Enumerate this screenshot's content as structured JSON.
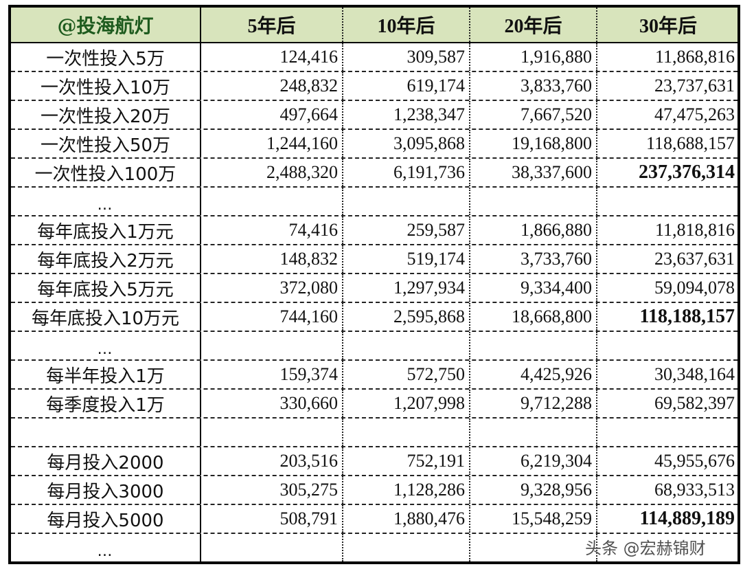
{
  "table": {
    "headers": [
      "@投海航灯",
      "5年后",
      "10年后",
      "20年后",
      "30年后"
    ],
    "rows": [
      {
        "label": "一次性投入5万",
        "v5": "124,416",
        "v10": "309,587",
        "v20": "1,916,880",
        "v30": "11,868,816",
        "bold30": false
      },
      {
        "label": "一次性投入10万",
        "v5": "248,832",
        "v10": "619,174",
        "v20": "3,833,760",
        "v30": "23,737,631",
        "bold30": false
      },
      {
        "label": "一次性投入20万",
        "v5": "497,664",
        "v10": "1,238,347",
        "v20": "7,667,520",
        "v30": "47,475,263",
        "bold30": false
      },
      {
        "label": "一次性投入50万",
        "v5": "1,244,160",
        "v10": "3,095,868",
        "v20": "19,168,800",
        "v30": "118,688,157",
        "bold30": false
      },
      {
        "label": "一次性投入100万",
        "v5": "2,488,320",
        "v10": "6,191,736",
        "v20": "38,337,600",
        "v30": "237,376,314",
        "bold30": true
      },
      {
        "label": "…",
        "v5": "",
        "v10": "",
        "v20": "",
        "v30": "",
        "bold30": false
      },
      {
        "label": "每年底投入1万元",
        "v5": "74,416",
        "v10": "259,587",
        "v20": "1,866,880",
        "v30": "11,818,816",
        "bold30": false
      },
      {
        "label": "每年底投入2万元",
        "v5": "148,832",
        "v10": "519,174",
        "v20": "3,733,760",
        "v30": "23,637,631",
        "bold30": false
      },
      {
        "label": "每年底投入5万元",
        "v5": "372,080",
        "v10": "1,297,934",
        "v20": "9,334,400",
        "v30": "59,094,078",
        "bold30": false
      },
      {
        "label": "每年底投入10万元",
        "v5": "744,160",
        "v10": "2,595,868",
        "v20": "18,668,800",
        "v30": "118,188,157",
        "bold30": true
      },
      {
        "label": "…",
        "v5": "",
        "v10": "",
        "v20": "",
        "v30": "",
        "bold30": false
      },
      {
        "label": "每半年投入1万",
        "v5": "159,374",
        "v10": "572,750",
        "v20": "4,425,926",
        "v30": "30,348,164",
        "bold30": false
      },
      {
        "label": "每季度投入1万",
        "v5": "330,660",
        "v10": "1,207,998",
        "v20": "9,712,288",
        "v30": "69,582,397",
        "bold30": false
      },
      {
        "label": "",
        "v5": "",
        "v10": "",
        "v20": "",
        "v30": "",
        "bold30": false
      },
      {
        "label": "每月投入2000",
        "v5": "203,516",
        "v10": "752,191",
        "v20": "6,219,304",
        "v30": "45,955,676",
        "bold30": false
      },
      {
        "label": "每月投入3000",
        "v5": "305,275",
        "v10": "1,128,286",
        "v20": "9,328,956",
        "v30": "68,933,513",
        "bold30": false
      },
      {
        "label": "每月投入5000",
        "v5": "508,791",
        "v10": "1,880,476",
        "v20": "15,548,259",
        "v30": "114,889,189",
        "bold30": true
      },
      {
        "label": "…",
        "v5": "",
        "v10": "",
        "v20": "",
        "v30": "",
        "bold30": false
      }
    ]
  },
  "watermark": "头条 @宏赫锦财",
  "colors": {
    "header_bg": "#d8e4bc",
    "header_brand_text": "#1e5b1e",
    "border": "#000000"
  }
}
